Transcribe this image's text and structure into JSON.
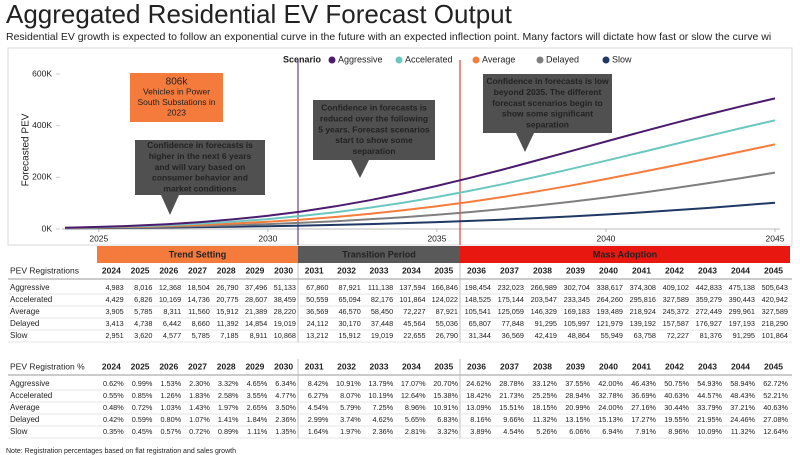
{
  "header": {
    "title": "Aggregated Residential EV Forecast Output",
    "subtitle": "Residential EV growth is expected to follow an exponential curve in the future with an expected inflection point. Many factors will dictate how fast or slow the curve wi"
  },
  "chart_data": {
    "type": "line",
    "ylabel": "Forecasted PEV",
    "legend_title": "Scenario",
    "x": [
      2024,
      2025,
      2026,
      2027,
      2028,
      2029,
      2030,
      2031,
      2032,
      2033,
      2034,
      2035,
      2036,
      2037,
      2038,
      2039,
      2040,
      2041,
      2042,
      2043,
      2044,
      2045
    ],
    "xlim": [
      2024,
      2045
    ],
    "xticks": [
      2025,
      2030,
      2035,
      2040,
      2045
    ],
    "ylim": [
      0,
      600000
    ],
    "yticks": [
      {
        "value": 0,
        "label": "0K"
      },
      {
        "value": 200000,
        "label": "200K"
      },
      {
        "value": 400000,
        "label": "400K"
      },
      {
        "value": 600000,
        "label": "600K"
      }
    ],
    "series": [
      {
        "name": "Aggressive",
        "color": "#4b1c6e",
        "values": [
          4983,
          8016,
          12368,
          18504,
          26790,
          37496,
          51133,
          67860,
          87921,
          111138,
          137594,
          166846,
          198454,
          232023,
          266989,
          302704,
          338617,
          374308,
          409102,
          442833,
          475138,
          505643
        ],
        "value_labels": [
          "4,983",
          "8,016",
          "12,368",
          "18,504",
          "26,790",
          "37,496",
          "51,133",
          "67,860",
          "87,921",
          "111,138",
          "137,594",
          "166,846",
          "198,454",
          "232,023",
          "266,989",
          "302,704",
          "338,617",
          "374,308",
          "409,102",
          "442,833",
          "475,138",
          "505,643"
        ]
      },
      {
        "name": "Accelerated",
        "color": "#6cc7c0",
        "values": [
          4429,
          6826,
          10169,
          14736,
          20775,
          28607,
          38459,
          50559,
          65094,
          82176,
          101864,
          124022,
          148525,
          175144,
          203547,
          233345,
          264260,
          295816,
          327589,
          359279,
          390443,
          420942
        ],
        "value_labels": [
          "4,429",
          "6,826",
          "10,169",
          "14,736",
          "20,775",
          "28,607",
          "38,459",
          "50,559",
          "65,094",
          "82,176",
          "101,864",
          "124,022",
          "148,525",
          "175,144",
          "203,547",
          "233,345",
          "264,260",
          "295,816",
          "327,589",
          "359,279",
          "390,443",
          "420,942"
        ]
      },
      {
        "name": "Average",
        "color": "#f47c3c",
        "values": [
          3905,
          5785,
          8311,
          11560,
          15912,
          21389,
          28220,
          36569,
          46570,
          58450,
          72227,
          87921,
          105541,
          125059,
          146329,
          169183,
          193489,
          218924,
          245372,
          272449,
          299961,
          327589
        ],
        "value_labels": [
          "3,905",
          "5,785",
          "8,311",
          "11,560",
          "15,912",
          "21,389",
          "28,220",
          "36,569",
          "46,570",
          "58,450",
          "72,227",
          "87,921",
          "105,541",
          "125,059",
          "146,329",
          "169,183",
          "193,489",
          "218,924",
          "245,372",
          "272,449",
          "299,961",
          "327,589"
        ]
      },
      {
        "name": "Delayed",
        "color": "#7f7f7f",
        "values": [
          3413,
          4738,
          6442,
          8660,
          11392,
          14854,
          19019,
          24112,
          30170,
          37448,
          45564,
          55036,
          65807,
          77848,
          91295,
          105997,
          121979,
          139192,
          157587,
          176927,
          197193,
          218290
        ],
        "value_labels": [
          "3,413",
          "4,738",
          "6,442",
          "8,660",
          "11,392",
          "14,854",
          "19,019",
          "24,112",
          "30,170",
          "37,448",
          "45,564",
          "55,036",
          "65,807",
          "77,848",
          "91,295",
          "105,997",
          "121,979",
          "139,192",
          "157,587",
          "176,927",
          "197,193",
          "218,290"
        ]
      },
      {
        "name": "Slow",
        "color": "#1f3864",
        "values": [
          2951,
          3620,
          4577,
          5785,
          7185,
          8911,
          10868,
          13212,
          15912,
          19019,
          22655,
          26790,
          31344,
          36569,
          42419,
          48864,
          55949,
          63758,
          72227,
          81376,
          91295,
          101864
        ],
        "value_labels": [
          "2,951",
          "3,620",
          "4,577",
          "5,785",
          "7,185",
          "8,911",
          "10,868",
          "13,212",
          "15,912",
          "19,019",
          "22,655",
          "26,790",
          "31,344",
          "36,569",
          "42,419",
          "48,864",
          "55,949",
          "63,758",
          "72,227",
          "81,376",
          "91,295",
          "101,864"
        ]
      }
    ],
    "annotations": [
      {
        "lines": [
          "806k",
          "Vehicles in Power",
          "South Substations in",
          "2023"
        ]
      },
      {
        "lines": [
          "Confidence in forecasts is",
          "higher in the next 6 years",
          "and will vary based on",
          "consumer behavior and",
          "market conditions"
        ]
      },
      {
        "lines": [
          "Confidence in forecasts is",
          "reduced over the following",
          "5 years. Forecast scenarios",
          "start to show some",
          "separation"
        ]
      },
      {
        "lines": [
          "Confidence in forecasts is low",
          "beyond 2035. The different",
          "forecast scenarios begin to",
          "show some significant",
          "separation"
        ]
      }
    ]
  },
  "periods": [
    {
      "label": "Trend Setting",
      "color": "#f47b3c"
    },
    {
      "label": "Transition Period",
      "color": "#595959"
    },
    {
      "label": "Mass Adoption",
      "color": "#e8170f"
    }
  ],
  "registrations_table": {
    "title": "PEV Registrations"
  },
  "percent_table": {
    "title": "PEV Registration %",
    "rows": [
      [
        "0.62%",
        "0.99%",
        "1.53%",
        "2.30%",
        "3.32%",
        "4.65%",
        "6.34%",
        "8.42%",
        "10.91%",
        "13.79%",
        "17.07%",
        "20.70%",
        "24.62%",
        "28.78%",
        "33.12%",
        "37.55%",
        "42.00%",
        "46.43%",
        "50.75%",
        "54.93%",
        "58.94%",
        "62.72%"
      ],
      [
        "0.55%",
        "0.85%",
        "1.26%",
        "1.83%",
        "2.58%",
        "3.55%",
        "4.77%",
        "6.27%",
        "8.07%",
        "10.19%",
        "12.64%",
        "15.38%",
        "18.42%",
        "21.73%",
        "25.25%",
        "28.94%",
        "32.78%",
        "36.69%",
        "40.63%",
        "44.57%",
        "48.43%",
        "52.21%"
      ],
      [
        "0.48%",
        "0.72%",
        "1.03%",
        "1.43%",
        "1.97%",
        "2.65%",
        "3.50%",
        "4.54%",
        "5.79%",
        "7.25%",
        "8.96%",
        "10.91%",
        "13.09%",
        "15.51%",
        "18.15%",
        "20.99%",
        "24.00%",
        "27.16%",
        "30.44%",
        "33.79%",
        "37.21%",
        "40.63%"
      ],
      [
        "0.42%",
        "0.59%",
        "0.80%",
        "1.07%",
        "1.41%",
        "1.84%",
        "2.36%",
        "2.99%",
        "3.74%",
        "4.62%",
        "5.65%",
        "6.83%",
        "8.16%",
        "9.66%",
        "11.32%",
        "13.15%",
        "15.13%",
        "17.27%",
        "19.55%",
        "21.95%",
        "24.46%",
        "27.08%"
      ],
      [
        "0.35%",
        "0.45%",
        "0.57%",
        "0.72%",
        "0.89%",
        "1.11%",
        "1.35%",
        "1.64%",
        "1.97%",
        "2.36%",
        "2.81%",
        "3.32%",
        "3.89%",
        "4.54%",
        "5.26%",
        "6.06%",
        "6.94%",
        "7.91%",
        "8.96%",
        "10.09%",
        "11.32%",
        "12.64%"
      ]
    ]
  },
  "note": "Note: Registration percentages based on flat registration and sales growth"
}
